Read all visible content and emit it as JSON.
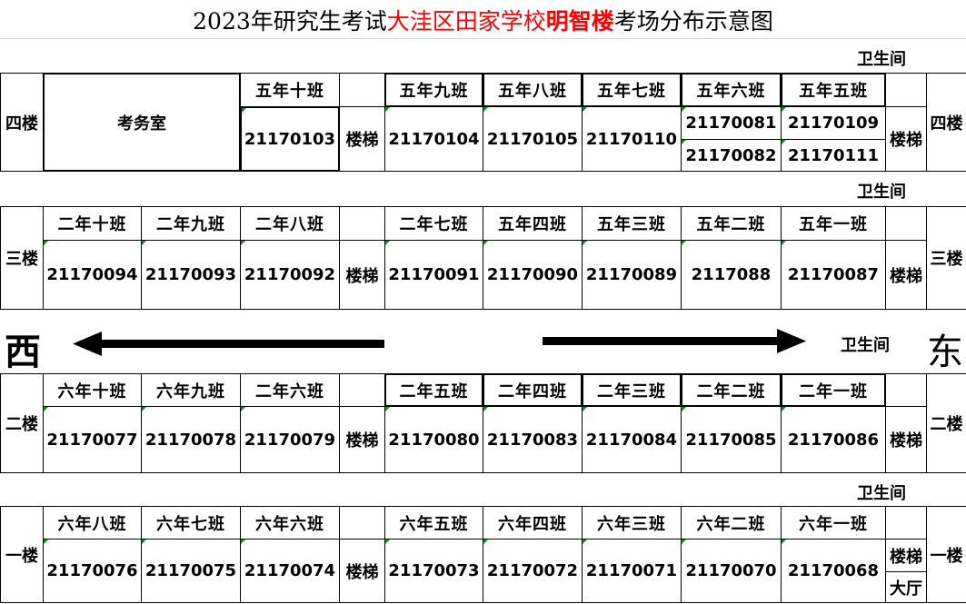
{
  "title": {
    "part1": "2023年研究生考试",
    "part2": "大洼区田家学校",
    "part3": "明智楼",
    "part4": "考场分布示意图",
    "accent_color": "#ff0000"
  },
  "labels": {
    "restroom": "卫生间",
    "stairs": "楼梯",
    "hall": "大厅",
    "office": "考务室",
    "west": "西",
    "east": "东"
  },
  "floors": [
    {
      "label": "四楼",
      "classes": [
        "",
        "",
        "五年十班",
        "五年九班",
        "五年八班",
        "五年七班",
        "五年六班",
        "五年五班"
      ],
      "rooms": [
        "",
        "",
        "21170103",
        "21170104",
        "21170105",
        "21170110",
        [
          "21170081",
          "21170082"
        ],
        [
          "21170109",
          "21170111"
        ]
      ]
    },
    {
      "label": "三楼",
      "classes": [
        "二年十班",
        "二年九班",
        "二年八班",
        "二年七班",
        "五年四班",
        "五年三班",
        "五年二班",
        "五年一班"
      ],
      "rooms": [
        "21170094",
        "21170093",
        "21170092",
        "21170091",
        "21170090",
        "21170089",
        "2117088",
        "21170087"
      ]
    },
    {
      "label": "二楼",
      "classes": [
        "六年十班",
        "六年九班",
        "二年六班",
        "二年五班",
        "二年四班",
        "二年三班",
        "二年二班",
        "二年一班"
      ],
      "rooms": [
        "21170077",
        "21170078",
        "21170079",
        "21170080",
        "21170083",
        "21170084",
        "21170085",
        "21170086"
      ]
    },
    {
      "label": "一楼",
      "classes": [
        "六年八班",
        "六年七班",
        "六年六班",
        "六年五班",
        "六年四班",
        "六年三班",
        "六年二班",
        "六年一班"
      ],
      "rooms": [
        "21170076",
        "21170075",
        "21170074",
        "21170073",
        "21170072",
        "21170071",
        "21170070",
        "21170068"
      ]
    }
  ]
}
